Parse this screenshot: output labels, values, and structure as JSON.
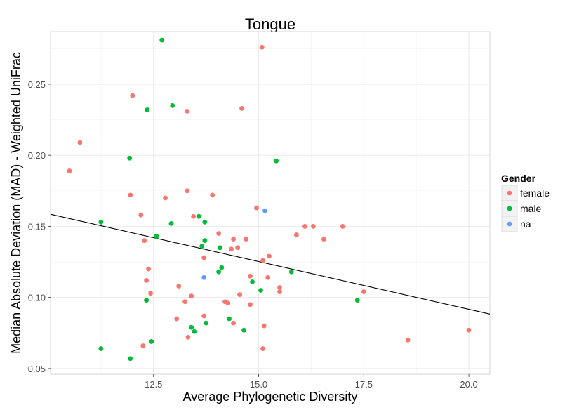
{
  "chart_data": {
    "type": "scatter",
    "title": "Tongue",
    "xlabel": "Average Phylogenetic Diversity",
    "ylabel": "Median Absolute Deviation (MAD) - Weighted UniFrac",
    "xlim": [
      10.05,
      20.5
    ],
    "ylim": [
      0.046,
      0.287
    ],
    "x_ticks": [
      12.5,
      15.0,
      17.5,
      20.0
    ],
    "x_tick_labels": [
      "12.5",
      "15.0",
      "17.5",
      "20.0"
    ],
    "y_ticks": [
      0.05,
      0.1,
      0.15,
      0.2,
      0.25
    ],
    "y_tick_labels": [
      "0.05",
      "0.10",
      "0.15",
      "0.20",
      "0.25"
    ],
    "grid": true,
    "legend": {
      "title": "Gender",
      "position": "right",
      "entries": [
        {
          "label": "female",
          "color": "#F8766D"
        },
        {
          "label": "male",
          "color": "#00BA38"
        },
        {
          "label": "na",
          "color": "#619CFF"
        }
      ]
    },
    "trend_line": {
      "x": [
        10.05,
        20.5
      ],
      "y": [
        0.1585,
        0.0883
      ],
      "color": "#000000"
    },
    "series": [
      {
        "name": "female",
        "color": "#F8766D",
        "points": [
          [
            15.08,
            0.276
          ],
          [
            12.0,
            0.242
          ],
          [
            14.6,
            0.233
          ],
          [
            13.3,
            0.231
          ],
          [
            10.75,
            0.209
          ],
          [
            10.5,
            0.189
          ],
          [
            11.95,
            0.172
          ],
          [
            13.3,
            0.175
          ],
          [
            12.78,
            0.17
          ],
          [
            13.9,
            0.172
          ],
          [
            12.2,
            0.158
          ],
          [
            13.45,
            0.157
          ],
          [
            14.95,
            0.163
          ],
          [
            16.1,
            0.15
          ],
          [
            16.3,
            0.15
          ],
          [
            15.9,
            0.144
          ],
          [
            14.05,
            0.145
          ],
          [
            14.4,
            0.141
          ],
          [
            14.7,
            0.141
          ],
          [
            12.28,
            0.14
          ],
          [
            14.5,
            0.135
          ],
          [
            14.35,
            0.134
          ],
          [
            15.25,
            0.129
          ],
          [
            13.7,
            0.128
          ],
          [
            15.1,
            0.126
          ],
          [
            16.55,
            0.141
          ],
          [
            17.0,
            0.15
          ],
          [
            12.38,
            0.12
          ],
          [
            14.8,
            0.115
          ],
          [
            15.22,
            0.114
          ],
          [
            12.33,
            0.112
          ],
          [
            13.1,
            0.108
          ],
          [
            15.5,
            0.107
          ],
          [
            15.5,
            0.104
          ],
          [
            17.5,
            0.104
          ],
          [
            12.43,
            0.103
          ],
          [
            14.55,
            0.102
          ],
          [
            13.4,
            0.101
          ],
          [
            13.25,
            0.097
          ],
          [
            14.2,
            0.097
          ],
          [
            14.27,
            0.096
          ],
          [
            14.8,
            0.095
          ],
          [
            13.05,
            0.085
          ],
          [
            13.7,
            0.087
          ],
          [
            14.4,
            0.082
          ],
          [
            15.13,
            0.08
          ],
          [
            13.32,
            0.072
          ],
          [
            12.25,
            0.066
          ],
          [
            15.1,
            0.064
          ],
          [
            18.55,
            0.07
          ],
          [
            20.0,
            0.077
          ]
        ]
      },
      {
        "name": "male",
        "color": "#00BA38",
        "points": [
          [
            12.7,
            0.281
          ],
          [
            12.95,
            0.235
          ],
          [
            12.35,
            0.232
          ],
          [
            11.93,
            0.198
          ],
          [
            15.42,
            0.196
          ],
          [
            11.25,
            0.153
          ],
          [
            12.92,
            0.152
          ],
          [
            13.58,
            0.157
          ],
          [
            13.72,
            0.153
          ],
          [
            12.57,
            0.143
          ],
          [
            13.72,
            0.14
          ],
          [
            13.65,
            0.136
          ],
          [
            14.08,
            0.135
          ],
          [
            14.12,
            0.121
          ],
          [
            14.05,
            0.118
          ],
          [
            15.78,
            0.118
          ],
          [
            14.85,
            0.111
          ],
          [
            15.05,
            0.105
          ],
          [
            12.33,
            0.098
          ],
          [
            17.35,
            0.098
          ],
          [
            14.3,
            0.085
          ],
          [
            13.75,
            0.082
          ],
          [
            13.4,
            0.079
          ],
          [
            13.47,
            0.076
          ],
          [
            14.65,
            0.077
          ],
          [
            12.45,
            0.069
          ],
          [
            11.25,
            0.064
          ],
          [
            11.95,
            0.057
          ]
        ]
      },
      {
        "name": "na",
        "color": "#619CFF",
        "points": [
          [
            15.15,
            0.161
          ],
          [
            13.7,
            0.114
          ]
        ]
      }
    ]
  }
}
